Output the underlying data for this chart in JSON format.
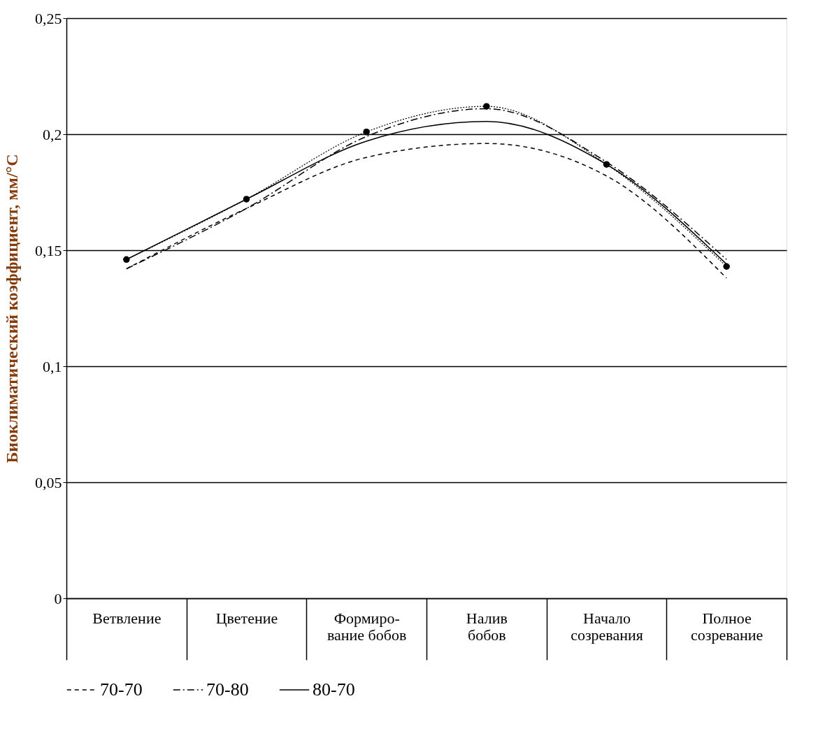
{
  "chart_data": {
    "type": "line",
    "ylabel": "Биоклиматический коэффициент,  мм/°С",
    "categories": [
      "Ветвление",
      "Цветение",
      "Формиро-\nвание бобов",
      "Налив\nбобов",
      "Начало\nсозревания",
      "Полное\nсозревание"
    ],
    "series": [
      {
        "name": "70-70",
        "color": "#000000",
        "line_style": "dashed",
        "values": [
          0.142,
          0.168,
          0.19,
          0.196,
          0.182,
          0.138
        ]
      },
      {
        "name": "70-80",
        "color": "#000000",
        "line_style": "dashdot",
        "values": [
          0.142,
          0.168,
          0.199,
          0.211,
          0.188,
          0.146
        ]
      },
      {
        "name": "80-70",
        "color": "#000000",
        "line_style": "solid",
        "values": [
          0.146,
          0.172,
          0.197,
          0.2055,
          0.187,
          0.144
        ]
      },
      {
        "color": "#000000",
        "line_style": "dotted",
        "marker": "circle",
        "values": [
          0.146,
          0.172,
          0.201,
          0.212,
          0.187,
          0.143
        ]
      }
    ],
    "ylim": [
      0,
      0.25
    ],
    "yticks": [
      0,
      {
        "value": 0.05,
        "label": "0,05"
      },
      {
        "value": 0.1,
        "label": "0,1"
      },
      {
        "value": 0.15,
        "label": "0,15"
      },
      {
        "value": 0.2,
        "label": "0,2"
      },
      {
        "value": 0.25,
        "label": "0,25"
      }
    ],
    "grid": "y",
    "legend": "bottom"
  }
}
